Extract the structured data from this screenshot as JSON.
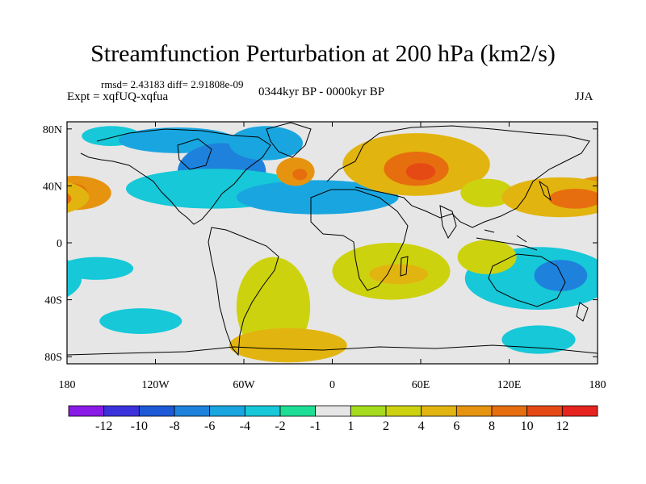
{
  "title": "Streamfunction Perturbation at 200 hPa (km2/s)",
  "stats": "rmsd= 2.43183  diff= 2.91808e-09",
  "expt": "Expt = xqfUQ-xqfua",
  "period": "0344kyr BP - 0000kyr BP",
  "season": "JJA",
  "lat_ticks": [
    "80N",
    "40N",
    "0",
    "40S",
    "80S"
  ],
  "lon_ticks": [
    "180",
    "120W",
    "60W",
    "0",
    "60E",
    "120E",
    "180"
  ],
  "colorbar": {
    "labels": [
      "-12",
      "-10",
      "-8",
      "-6",
      "-4",
      "-2",
      "-1",
      "1",
      "2",
      "4",
      "6",
      "8",
      "10",
      "12"
    ],
    "colors": [
      "#8a1ae6",
      "#3c32dc",
      "#1e5ad7",
      "#1e82dc",
      "#19a6e0",
      "#16c8d8",
      "#1ede96",
      "#e6e6e6",
      "#a6dc1e",
      "#cdd20f",
      "#e2b40f",
      "#e6940f",
      "#e66e0f",
      "#e64a14",
      "#e6231e"
    ]
  },
  "field": {
    "neutral_color": "#e6e6e6",
    "blobs": [
      {
        "lon": -150,
        "lat": 75,
        "rlon": 20,
        "rlat": 7,
        "level": -2
      },
      {
        "lon": -105,
        "lat": 72,
        "rlon": 40,
        "rlat": 9,
        "level": -3
      },
      {
        "lon": -75,
        "lat": 50,
        "rlon": 30,
        "rlat": 20,
        "level": -4
      },
      {
        "lon": -45,
        "lat": 70,
        "rlon": 25,
        "rlat": 12,
        "level": -3
      },
      {
        "lon": -80,
        "lat": 38,
        "rlon": 60,
        "rlat": 14,
        "level": -2
      },
      {
        "lon": -30,
        "lat": 32,
        "rlon": 20,
        "rlat": 7,
        "level": -5
      },
      {
        "lon": -10,
        "lat": 32,
        "rlon": 55,
        "rlat": 12,
        "level": -3
      },
      {
        "lon": -25,
        "lat": 50,
        "rlon": 13,
        "rlat": 10,
        "level": 4
      },
      {
        "lon": -22,
        "lat": 48,
        "rlon": 5,
        "rlat": 4,
        "level": 5
      },
      {
        "lon": 57,
        "lat": 55,
        "rlon": 50,
        "rlat": 22,
        "level": 3
      },
      {
        "lon": 57,
        "lat": 52,
        "rlon": 22,
        "rlat": 12,
        "level": 5
      },
      {
        "lon": 60,
        "lat": 50,
        "rlon": 10,
        "rlat": 6,
        "level": 6
      },
      {
        "lon": -175,
        "lat": 35,
        "rlon": 25,
        "rlat": 12,
        "level": 4
      },
      {
        "lon": -178,
        "lat": 35,
        "rlon": 12,
        "rlat": 7,
        "level": 5
      },
      {
        "lon": 105,
        "lat": 35,
        "rlon": 18,
        "rlat": 10,
        "level": 2
      },
      {
        "lon": 155,
        "lat": 32,
        "rlon": 40,
        "rlat": 14,
        "level": 3
      },
      {
        "lon": 165,
        "lat": 31,
        "rlon": 18,
        "rlat": 7,
        "level": 5
      },
      {
        "lon": 140,
        "lat": -25,
        "rlon": 50,
        "rlat": 22,
        "level": -2
      },
      {
        "lon": 155,
        "lat": -23,
        "rlon": 18,
        "rlat": 11,
        "level": -4
      },
      {
        "lon": -160,
        "lat": -18,
        "rlon": 25,
        "rlat": 8,
        "level": -2
      },
      {
        "lon": -40,
        "lat": -45,
        "rlon": 25,
        "rlat": 35,
        "level": 2
      },
      {
        "lon": 40,
        "lat": -20,
        "rlon": 40,
        "rlat": 20,
        "level": 2
      },
      {
        "lon": 45,
        "lat": -22,
        "rlon": 20,
        "rlat": 7,
        "level": 3
      },
      {
        "lon": -30,
        "lat": -72,
        "rlon": 40,
        "rlat": 12,
        "level": 3
      },
      {
        "lon": -130,
        "lat": -55,
        "rlon": 28,
        "rlat": 9,
        "level": -2
      },
      {
        "lon": 140,
        "lat": -68,
        "rlon": 25,
        "rlat": 10,
        "level": -2
      },
      {
        "lon": 105,
        "lat": -10,
        "rlon": 20,
        "rlat": 12,
        "level": 2
      }
    ]
  }
}
